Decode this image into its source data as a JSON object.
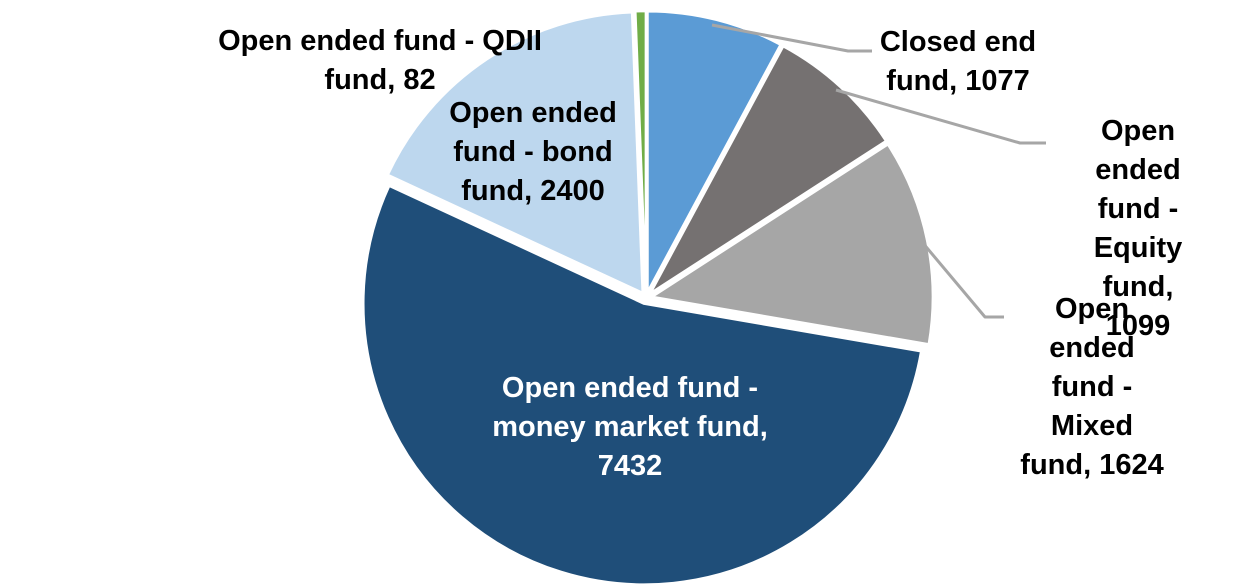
{
  "chart_data": {
    "type": "pie",
    "title": "",
    "start_angle_deg": 0,
    "direction": "clockwise",
    "total": 13714,
    "background_color": "#FFFFFF",
    "border_color": "#FFFFFF",
    "leader_line_color": "#A6A6A6",
    "label_text_color": "#000000",
    "inside_label_text_color": "#FFFFFF",
    "legend": "none",
    "slices": [
      {
        "id": "closed-end-fund",
        "label": "Closed end fund",
        "value": 1077,
        "color": "#5B9BD5",
        "data_label": "Closed end\nfund, 1077",
        "label_placement": "outside",
        "has_leader_line": true
      },
      {
        "id": "equity-fund",
        "label": "Open ended fund - Equity fund",
        "value": 1099,
        "color": "#757171",
        "data_label": "Open ended\nfund - Equity\nfund, 1099",
        "label_placement": "outside",
        "has_leader_line": true
      },
      {
        "id": "mixed-fund",
        "label": "Open ended fund - Mixed fund",
        "value": 1624,
        "color": "#A6A6A6",
        "data_label": "Open ended\nfund - Mixed\nfund, 1624",
        "label_placement": "outside",
        "has_leader_line": true
      },
      {
        "id": "money-market-fund",
        "label": "Open ended fund - money market fund",
        "value": 7432,
        "color": "#1F4E79",
        "data_label": "Open ended fund -\nmoney market fund,\n7432",
        "label_placement": "inside",
        "has_leader_line": false
      },
      {
        "id": "bond-fund",
        "label": "Open ended fund - bond fund",
        "value": 2400,
        "color": "#BDD7EE",
        "data_label": "Open ended\nfund - bond\nfund, 2400",
        "label_placement": "on-slice",
        "has_leader_line": false
      },
      {
        "id": "qdii-fund",
        "label": "Open ended fund - QDII fund",
        "value": 82,
        "color": "#70AD47",
        "data_label": "Open ended fund - QDII\nfund, 82",
        "label_placement": "outside",
        "has_leader_line": false
      }
    ]
  }
}
